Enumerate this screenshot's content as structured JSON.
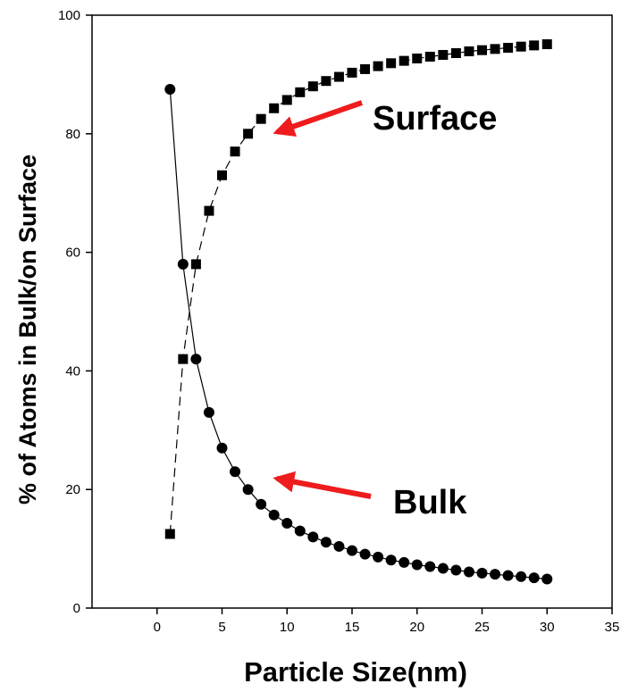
{
  "chart_data": {
    "type": "line",
    "xlabel": "Particle Size(nm)",
    "ylabel": "% of Atoms in Bulk/on Surface",
    "xlim": [
      -5,
      35
    ],
    "ylim": [
      0,
      100
    ],
    "x_ticks": [
      0,
      5,
      10,
      15,
      20,
      25,
      30,
      35
    ],
    "y_ticks": [
      0,
      20,
      40,
      60,
      80,
      100
    ],
    "grid": false,
    "series": [
      {
        "name": "Surface",
        "marker": "square",
        "line_style": "dashed",
        "x": [
          1,
          2,
          3,
          4,
          5,
          6,
          7,
          8,
          9,
          10,
          11,
          12,
          13,
          14,
          15,
          16,
          17,
          18,
          19,
          20,
          21,
          22,
          23,
          24,
          25,
          26,
          27,
          28,
          29,
          30
        ],
        "values": [
          12.5,
          42,
          58,
          67,
          73,
          77,
          80,
          82.5,
          84.3,
          85.7,
          87,
          88,
          88.9,
          89.6,
          90.3,
          90.9,
          91.4,
          91.9,
          92.3,
          92.7,
          93,
          93.3,
          93.6,
          93.9,
          94.1,
          94.3,
          94.5,
          94.7,
          94.9,
          95.1
        ]
      },
      {
        "name": "Bulk",
        "marker": "circle",
        "line_style": "solid",
        "x": [
          1,
          2,
          3,
          4,
          5,
          6,
          7,
          8,
          9,
          10,
          11,
          12,
          13,
          14,
          15,
          16,
          17,
          18,
          19,
          20,
          21,
          22,
          23,
          24,
          25,
          26,
          27,
          28,
          29,
          30
        ],
        "values": [
          87.5,
          58,
          42,
          33,
          27,
          23,
          20,
          17.5,
          15.7,
          14.3,
          13,
          12,
          11.1,
          10.4,
          9.7,
          9.1,
          8.6,
          8.1,
          7.7,
          7.3,
          7,
          6.7,
          6.4,
          6.1,
          5.9,
          5.7,
          5.5,
          5.3,
          5.1,
          4.9
        ]
      }
    ],
    "annotations": [
      {
        "text": "Surface",
        "arrow": "red"
      },
      {
        "text": "Bulk",
        "arrow": "red"
      }
    ],
    "colors": {
      "arrow": "#ee1c1c",
      "marker": "#000000",
      "line": "#000000"
    }
  }
}
